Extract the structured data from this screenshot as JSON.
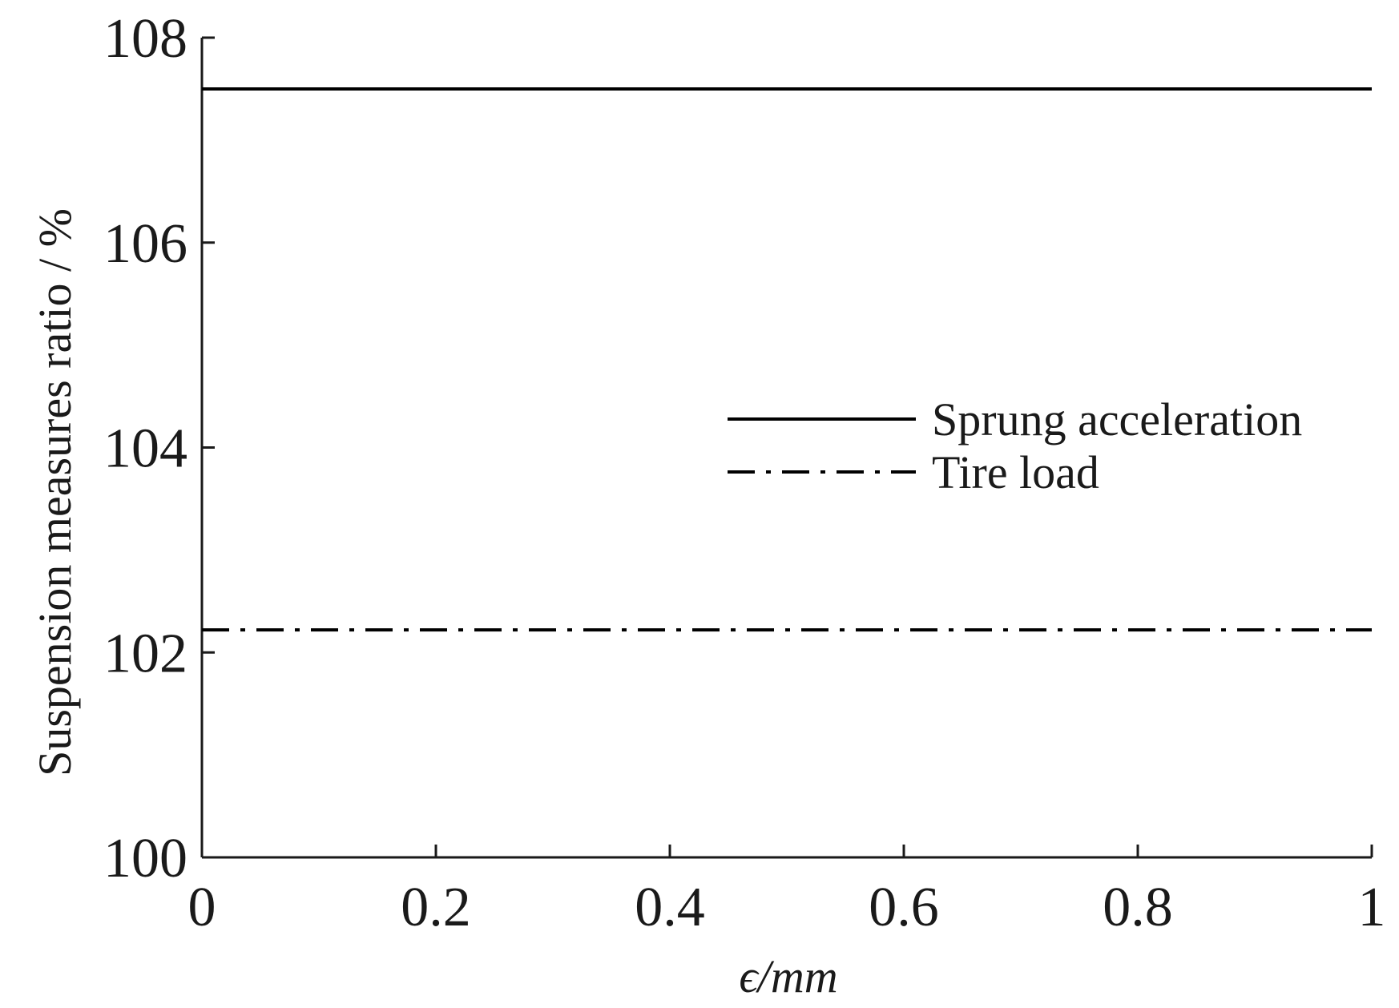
{
  "chart_data": {
    "type": "line",
    "title": "",
    "xlabel": "ϵ/mm",
    "ylabel": "Suspension measures ratio / %",
    "xlim": [
      0,
      1
    ],
    "ylim": [
      100,
      108
    ],
    "xticks": [
      0,
      0.2,
      0.4,
      0.6,
      0.8,
      1
    ],
    "xtick_labels": [
      "0",
      "0.2",
      "0.4",
      "0.6",
      "0.8",
      "1"
    ],
    "yticks": [
      100,
      102,
      104,
      106,
      108
    ],
    "ytick_labels": [
      "100",
      "102",
      "104",
      "106",
      "108"
    ],
    "grid": false,
    "legend_position": "right-center",
    "series": [
      {
        "name": "Sprung acceleration",
        "line_style": "solid",
        "color": "#000000",
        "x": [
          0,
          1
        ],
        "y": [
          107.5,
          107.5
        ]
      },
      {
        "name": "Tire load",
        "line_style": "dashdot",
        "color": "#000000",
        "x": [
          0,
          1
        ],
        "y": [
          102.22,
          102.22
        ]
      }
    ]
  }
}
